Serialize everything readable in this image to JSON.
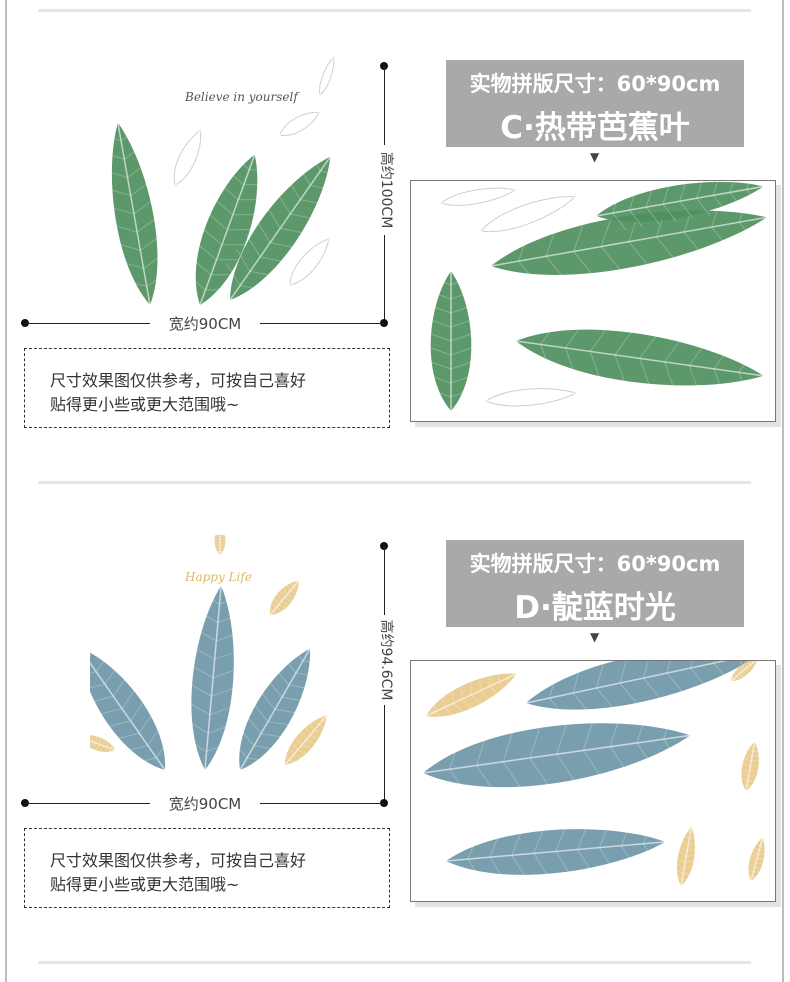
{
  "sections": [
    {
      "id": "c",
      "height_label": "高约100CM",
      "width_label": "宽约90CM",
      "note_lines": [
        "尺寸效果图仅供参考，可按自己喜好",
        "贴得更小些或更大范围哦~"
      ],
      "size_title": "实物拼版尺寸：60*90cm",
      "product_name": "C·热带芭蕉叶",
      "art_text": "Believe in yourself",
      "leaf_color": "#4f8f5e",
      "accent_leaf_color": "#c9c9c9"
    },
    {
      "id": "d",
      "height_label": "高约94.6CM",
      "width_label": "宽约90CM",
      "note_lines": [
        "尺寸效果图仅供参考，可按自己喜好",
        "贴得更小些或更大范围哦~"
      ],
      "size_title": "实物拼版尺寸：60*90cm",
      "product_name": "D·靛蓝时光",
      "art_text": "Happy Life",
      "leaf_color": "#6e97a8",
      "accent_leaf_color": "#e8c98a"
    }
  ],
  "arrow_icon": "▼"
}
